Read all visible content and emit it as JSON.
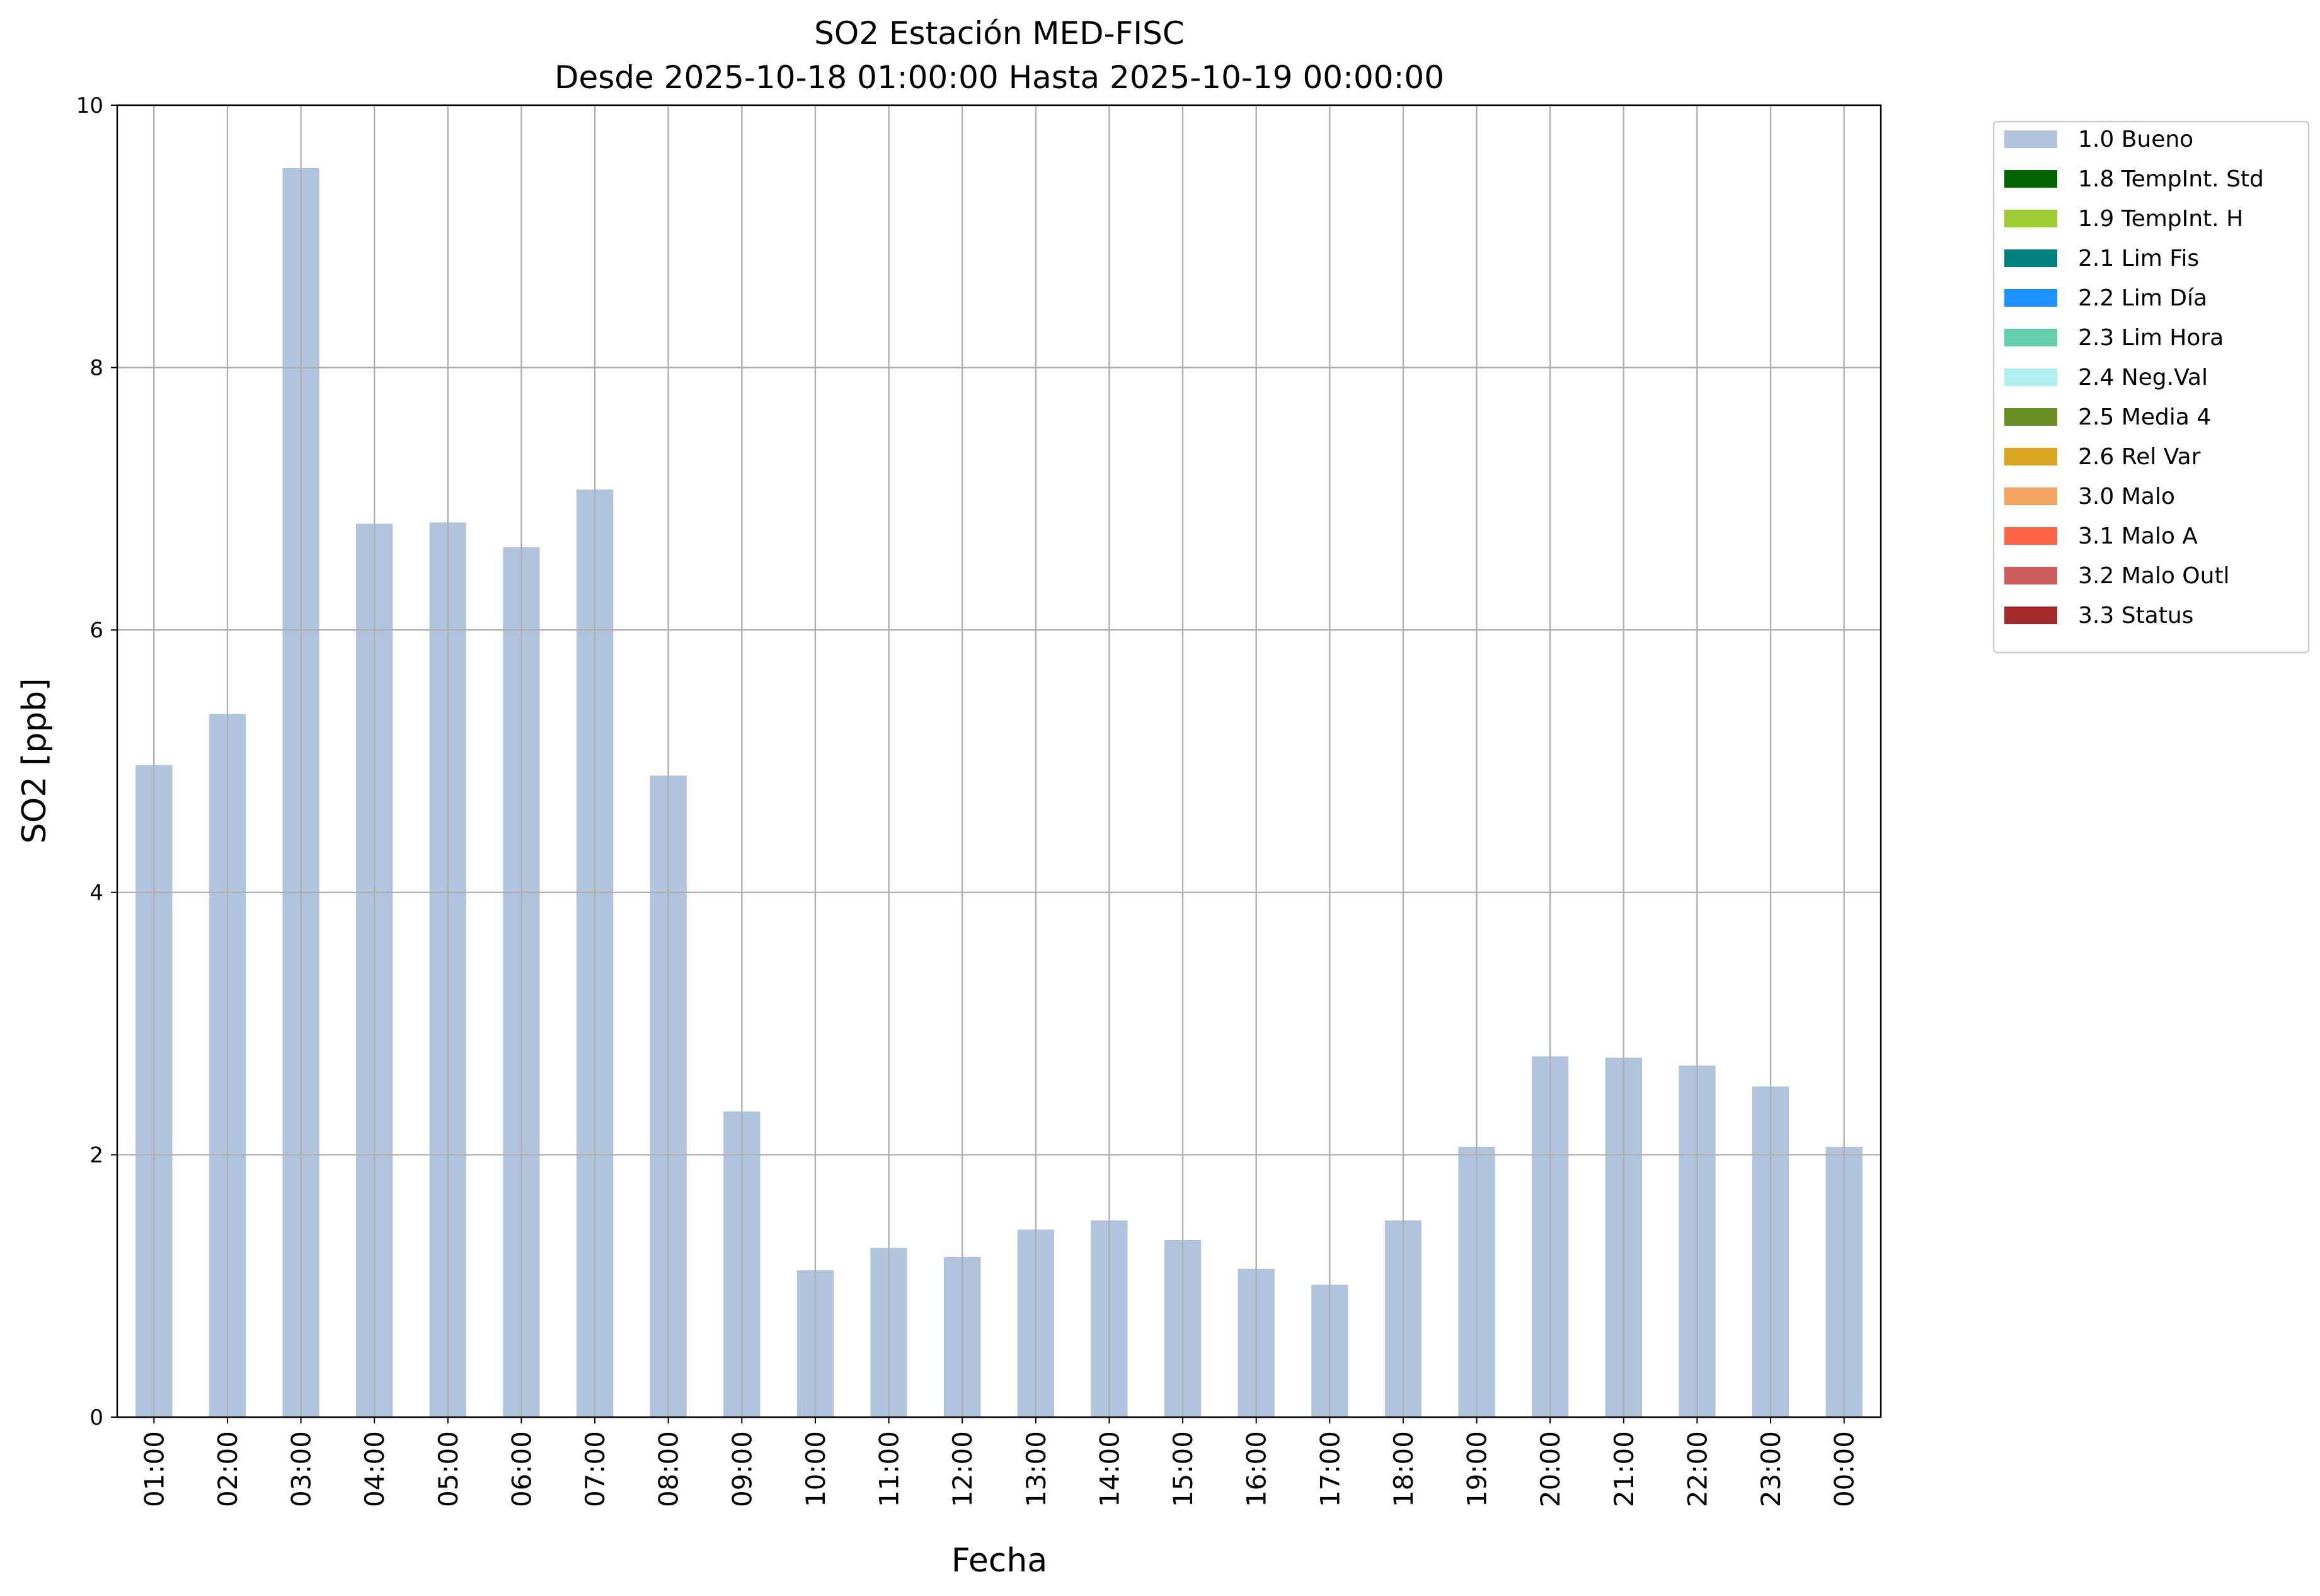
{
  "chart_data": {
    "type": "bar",
    "title": "SO2 Estación MED-FISC",
    "subtitle": "Desde 2025-10-18 01:00:00 Hasta 2025-10-19 00:00:00",
    "x_label": "Fecha",
    "y_label": "SO2 [ppb]",
    "categories": [
      "01:00",
      "02:00",
      "03:00",
      "04:00",
      "05:00",
      "06:00",
      "07:00",
      "08:00",
      "09:00",
      "10:00",
      "11:00",
      "12:00",
      "13:00",
      "14:00",
      "15:00",
      "16:00",
      "17:00",
      "18:00",
      "19:00",
      "20:00",
      "21:00",
      "22:00",
      "23:00",
      "00:00"
    ],
    "series": [
      {
        "name": "1.0 Bueno",
        "color": "#b0c4de",
        "values": [
          4.97,
          5.36,
          9.52,
          6.81,
          6.82,
          6.63,
          7.07,
          4.89,
          2.33,
          1.12,
          1.29,
          1.22,
          1.43,
          1.5,
          1.35,
          1.13,
          1.01,
          1.5,
          2.06,
          2.75,
          2.74,
          2.68,
          2.52,
          2.06
        ]
      },
      {
        "name": "1.8 TempInt. Std",
        "color": "#006400"
      },
      {
        "name": "1.9 TempInt. H",
        "color": "#9acd32"
      },
      {
        "name": "2.1 Lim Fis",
        "color": "#008080"
      },
      {
        "name": "2.2 Lim Día",
        "color": "#1e90ff"
      },
      {
        "name": "2.3 Lim Hora",
        "color": "#66cdaa"
      },
      {
        "name": "2.4 Neg.Val",
        "color": "#afeeee"
      },
      {
        "name": "2.5 Media 4",
        "color": "#6b8e23"
      },
      {
        "name": "2.6 Rel Var",
        "color": "#daa520"
      },
      {
        "name": "3.0 Malo",
        "color": "#f4a460"
      },
      {
        "name": "3.1 Malo A",
        "color": "#ff6347"
      },
      {
        "name": "3.2 Malo Outl",
        "color": "#cd5c5c"
      },
      {
        "name": "3.3 Status",
        "color": "#a52a2a"
      }
    ],
    "ylim": [
      0,
      10
    ],
    "yticks": [
      0,
      2,
      4,
      6,
      8,
      10
    ],
    "grid": true,
    "legend": "outside-upper-right"
  }
}
